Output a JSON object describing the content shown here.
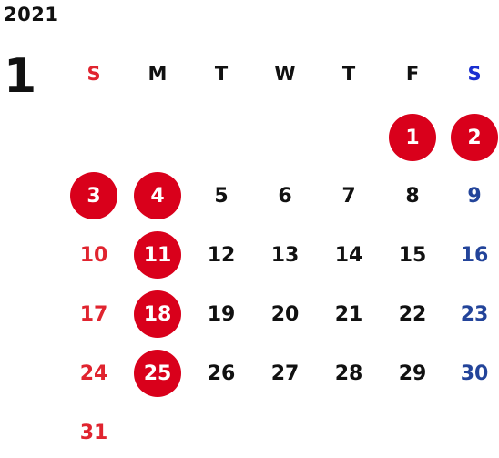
{
  "year": "2021",
  "month": "1",
  "weekdays": [
    "S",
    "M",
    "T",
    "W",
    "T",
    "F",
    "S"
  ],
  "weeks": [
    [
      "",
      "",
      "",
      "",
      "",
      "1",
      "2"
    ],
    [
      "3",
      "4",
      "5",
      "6",
      "7",
      "8",
      "9"
    ],
    [
      "10",
      "11",
      "12",
      "13",
      "14",
      "15",
      "16"
    ],
    [
      "17",
      "18",
      "19",
      "20",
      "21",
      "22",
      "23"
    ],
    [
      "24",
      "25",
      "26",
      "27",
      "28",
      "29",
      "30"
    ],
    [
      "31",
      "",
      "",
      "",
      "",
      "",
      ""
    ]
  ],
  "holidays": [
    "1",
    "2",
    "3",
    "4",
    "11",
    "18",
    "25"
  ],
  "colors": {
    "sunday": "#e0242f",
    "saturday": "#23449a",
    "saturday_header": "#1a2fd0",
    "holiday_fill": "#d9001b",
    "text": "#111111"
  }
}
